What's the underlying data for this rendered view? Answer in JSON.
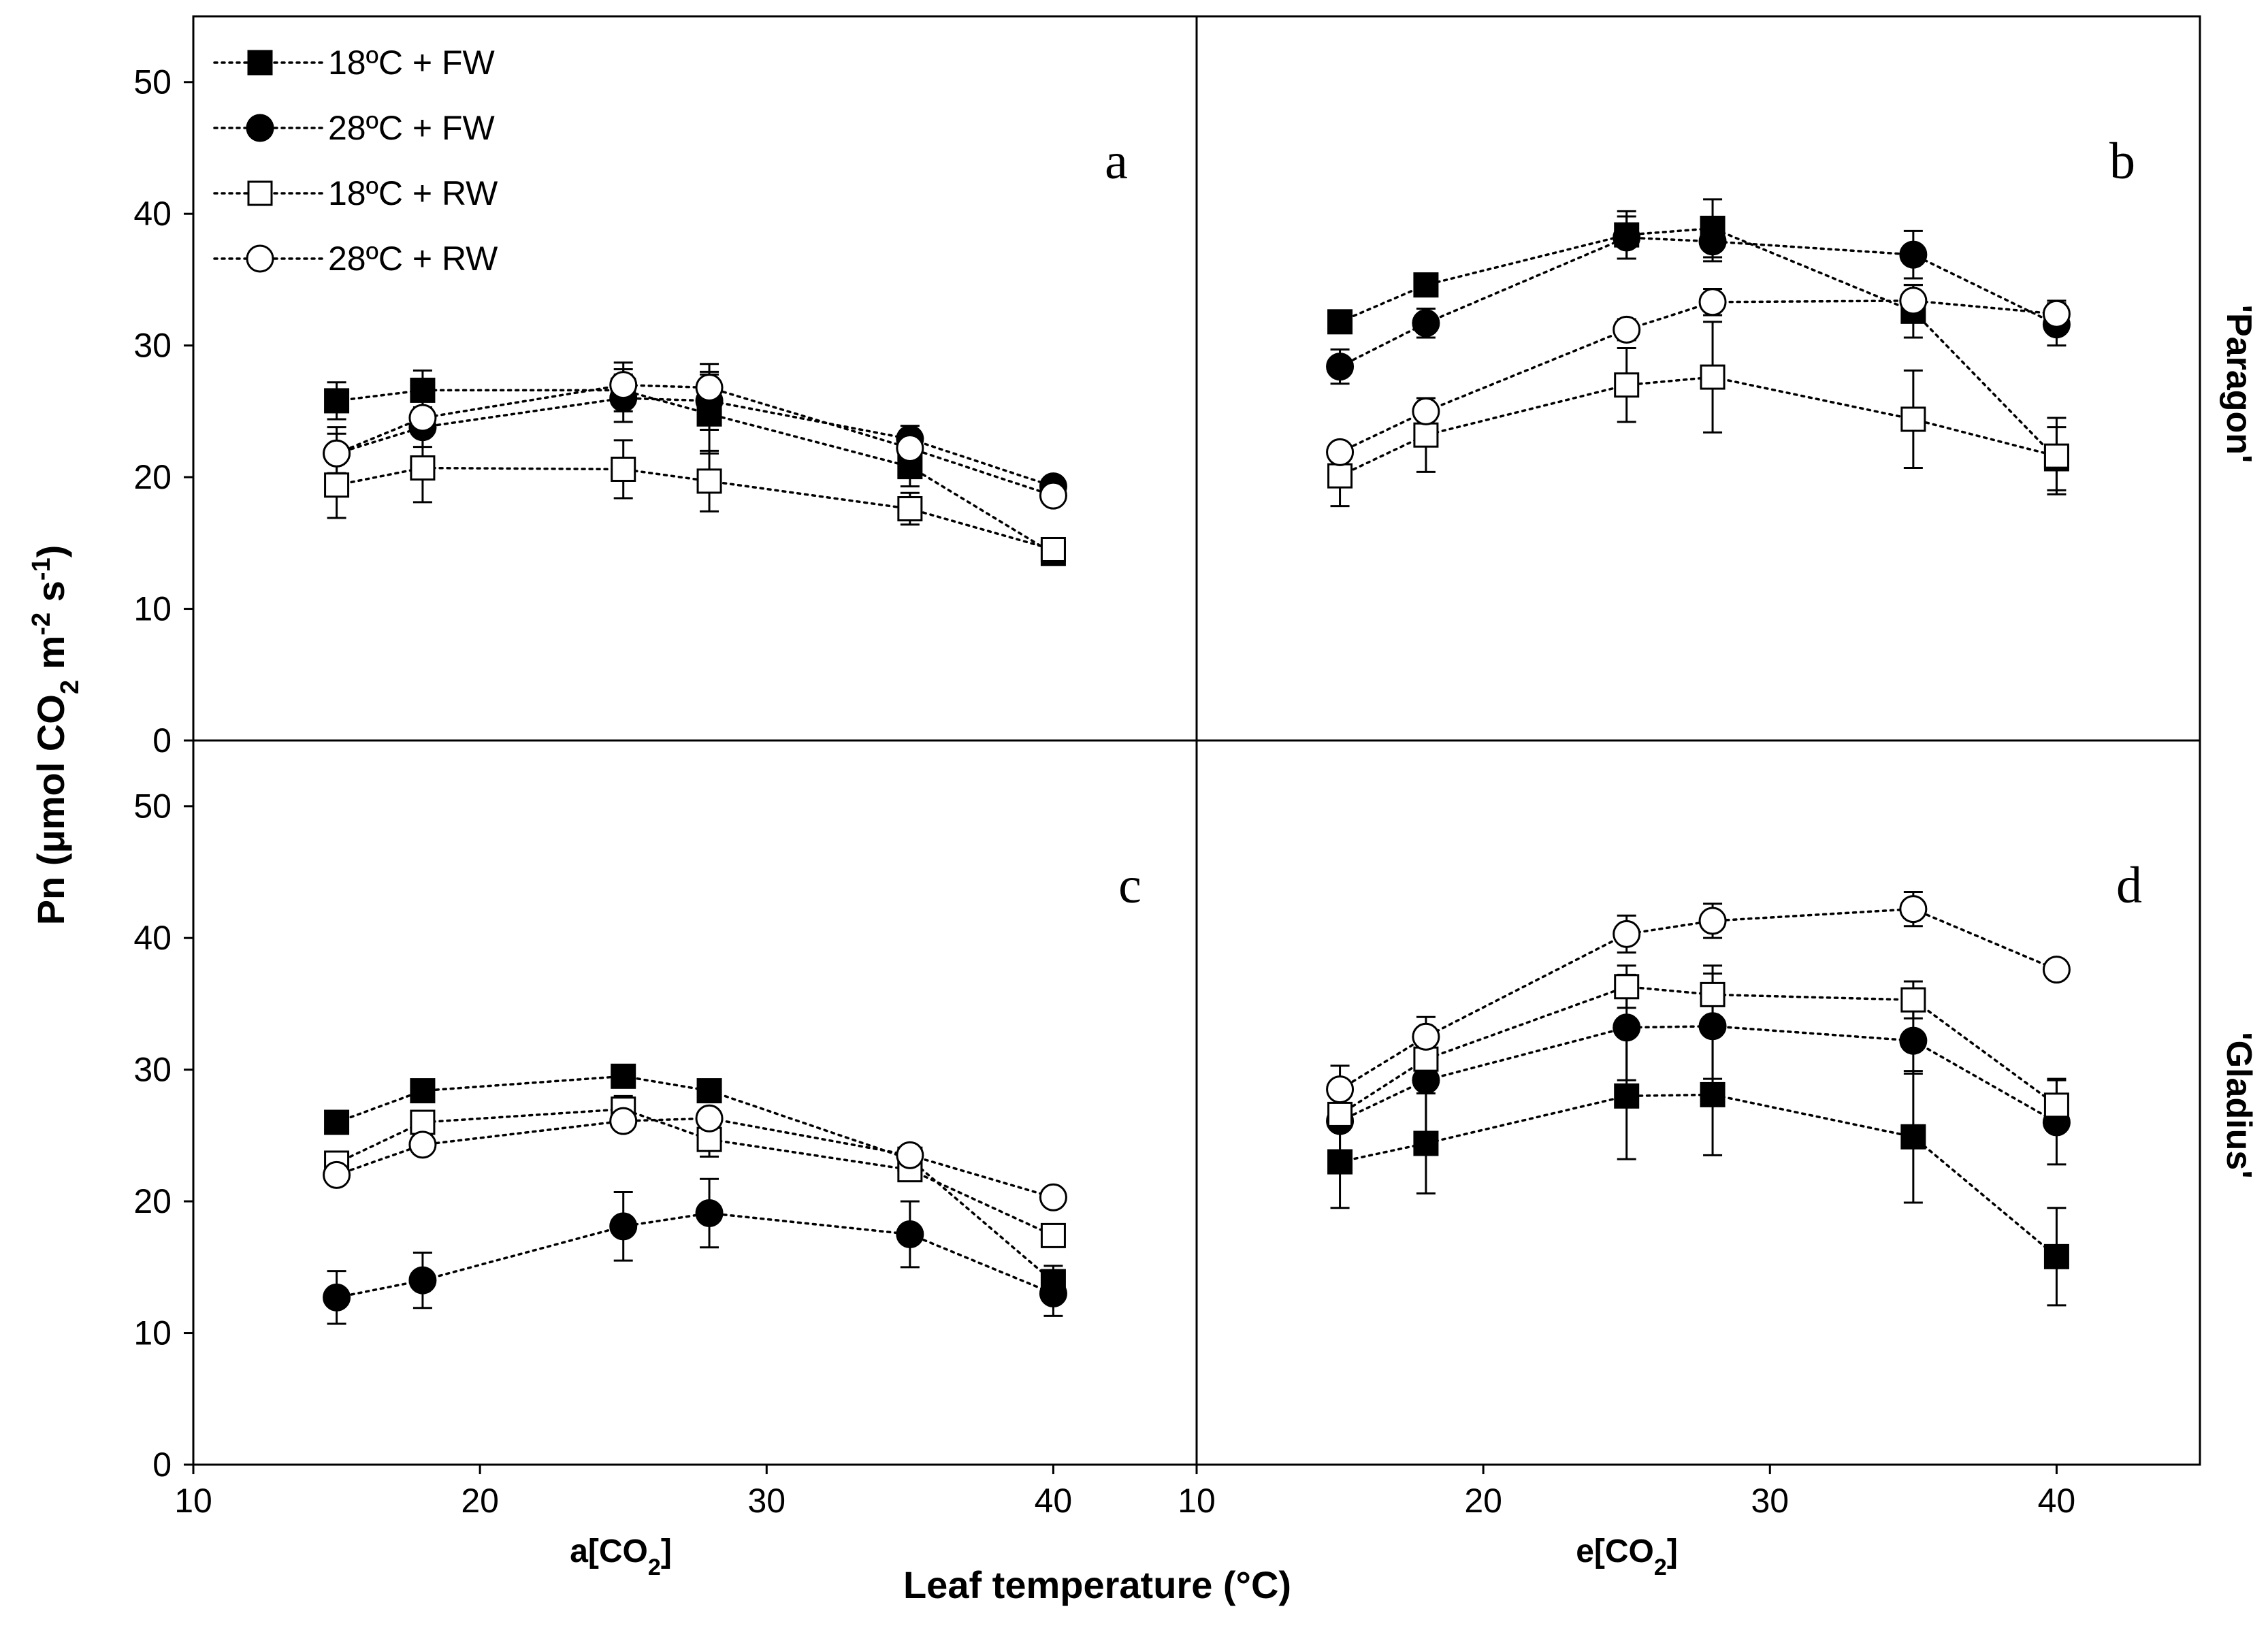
{
  "chart_data": {
    "type": "scatter",
    "ylabel_main": "Pn (μmol CO",
    "ylabel_sub2": "2",
    "ylabel_mid": " m",
    "ylabel_sup1": "-2",
    "ylabel_s": " s",
    "ylabel_sup2": "-1",
    "ylabel_close": ")",
    "xlabel": "Leaf temperature (°C)",
    "column_labels": [
      {
        "text": "a[CO",
        "sub": "2",
        "close": "]"
      },
      {
        "text": "e[CO",
        "sub": "2",
        "close": "]"
      }
    ],
    "row_labels": [
      "'Paragon'",
      "'Gladius'"
    ],
    "xlim": [
      10,
      45
    ],
    "xticks": [
      "10",
      "20",
      "30",
      "40"
    ],
    "ylim": [
      0,
      55
    ],
    "yticks": [
      "0",
      "10",
      "20",
      "30",
      "40",
      "50"
    ],
    "legend": {
      "placement": "top-left",
      "entries": [
        {
          "label": "18ºC + FW",
          "marker": "filled-square"
        },
        {
          "label": "28ºC + FW",
          "marker": "filled-circle"
        },
        {
          "label": "18ºC + RW",
          "marker": "open-square"
        },
        {
          "label": "28ºC + RW",
          "marker": "open-circle"
        }
      ]
    },
    "panels": [
      {
        "id": "a",
        "label": "a",
        "series": [
          {
            "name": "18ºC + FW",
            "x": [
              15,
              18,
              25,
              28,
              35,
              40
            ],
            "y": [
              25.8,
              26.6,
              26.6,
              24.8,
              20.8,
              14.2
            ],
            "err": [
              1.4,
              1.5,
              1.6,
              3.0,
              1.5,
              0.8
            ]
          },
          {
            "name": "28ºC + FW",
            "x": [
              15,
              18,
              25,
              28,
              35,
              40
            ],
            "y": [
              21.8,
              23.8,
              26.0,
              25.8,
              22.9,
              19.3
            ],
            "err": [
              2.0,
              1.5,
              1.8,
              2.2,
              1.0,
              0.6
            ]
          },
          {
            "name": "18ºC + RW",
            "x": [
              15,
              18,
              25,
              28,
              35,
              40
            ],
            "y": [
              19.4,
              20.7,
              20.6,
              19.7,
              17.6,
              14.5
            ],
            "err": [
              2.5,
              2.6,
              2.2,
              2.3,
              1.2,
              0.5
            ]
          },
          {
            "name": "28ºC + RW",
            "x": [
              15,
              18,
              25,
              28,
              35,
              40
            ],
            "y": [
              21.8,
              24.5,
              27.0,
              26.8,
              22.2,
              18.6
            ],
            "err": [
              1.5,
              1.3,
              1.7,
              1.8,
              1.0,
              0.5
            ]
          }
        ]
      },
      {
        "id": "b",
        "label": "b",
        "series": [
          {
            "name": "18ºC + FW",
            "x": [
              15,
              18,
              25,
              28,
              35,
              40
            ],
            "y": [
              31.8,
              34.6,
              38.4,
              38.9,
              32.6,
              21.4
            ],
            "err": [
              0.7,
              0.6,
              1.8,
              2.2,
              2.0,
              2.4
            ]
          },
          {
            "name": "28ºC + FW",
            "x": [
              15,
              18,
              25,
              28,
              35,
              40
            ],
            "y": [
              28.4,
              31.7,
              38.2,
              37.9,
              36.9,
              31.6
            ],
            "err": [
              1.3,
              1.1,
              1.6,
              1.5,
              1.8,
              1.6
            ]
          },
          {
            "name": "18ºC + RW",
            "x": [
              15,
              18,
              25,
              28,
              35,
              40
            ],
            "y": [
              20.1,
              23.2,
              27.0,
              27.6,
              24.4,
              21.6
            ],
            "err": [
              2.3,
              2.8,
              2.8,
              4.2,
              3.7,
              2.9
            ]
          },
          {
            "name": "28ºC + RW",
            "x": [
              15,
              18,
              25,
              28,
              35,
              40
            ],
            "y": [
              21.9,
              25.0,
              31.2,
              33.3,
              33.4,
              32.4
            ],
            "err": [
              0.5,
              0.7,
              0.8,
              1.0,
              1.2,
              1.0
            ]
          }
        ]
      },
      {
        "id": "c",
        "label": "c",
        "series": [
          {
            "name": "18ºC + FW",
            "x": [
              15,
              18,
              25,
              28,
              35,
              40
            ],
            "y": [
              26.0,
              28.4,
              29.5,
              28.4,
              23.2,
              13.9
            ],
            "err": [
              0.5,
              0.5,
              0.6,
              0.6,
              0.7,
              1.2
            ]
          },
          {
            "name": "28ºC + FW",
            "x": [
              15,
              18,
              25,
              28,
              35,
              40
            ],
            "y": [
              12.7,
              14.0,
              18.1,
              19.1,
              17.5,
              13.0
            ],
            "err": [
              2.0,
              2.1,
              2.6,
              2.6,
              2.5,
              1.7
            ]
          },
          {
            "name": "18ºC + RW",
            "x": [
              15,
              18,
              25,
              28,
              35,
              40
            ],
            "y": [
              22.9,
              26.0,
              27.0,
              24.7,
              22.4,
              17.4
            ],
            "err": [
              0.6,
              0.6,
              1.0,
              1.3,
              0.8,
              0.5
            ]
          },
          {
            "name": "28ºC + RW",
            "x": [
              15,
              18,
              25,
              28,
              35,
              40
            ],
            "y": [
              22.0,
              24.3,
              26.1,
              26.3,
              23.5,
              20.3
            ],
            "err": [
              0.6,
              0.6,
              0.7,
              0.7,
              0.6,
              0.5
            ]
          }
        ]
      },
      {
        "id": "d",
        "label": "d",
        "series": [
          {
            "name": "18ºC + FW",
            "x": [
              15,
              18,
              25,
              28,
              35,
              40
            ],
            "y": [
              23.0,
              24.4,
              28.0,
              28.1,
              24.9,
              15.8
            ],
            "err": [
              3.5,
              3.8,
              4.8,
              4.6,
              5.0,
              3.7
            ]
          },
          {
            "name": "28ºC + FW",
            "x": [
              15,
              18,
              25,
              28,
              35,
              40
            ],
            "y": [
              26.1,
              29.2,
              33.2,
              33.3,
              32.2,
              26.0
            ],
            "err": [
              2.5,
              4.0,
              4.0,
              4.0,
              2.5,
              3.2
            ]
          },
          {
            "name": "18ºC + RW",
            "x": [
              15,
              18,
              25,
              28,
              35,
              40
            ],
            "y": [
              26.6,
              30.8,
              36.3,
              35.7,
              35.3,
              27.3
            ],
            "err": [
              1.2,
              1.3,
              1.6,
              2.2,
              1.4,
              2.0
            ]
          },
          {
            "name": "28ºC + RW",
            "x": [
              15,
              18,
              25,
              28,
              35,
              40
            ],
            "y": [
              28.5,
              32.5,
              40.3,
              41.3,
              42.2,
              37.6
            ],
            "err": [
              1.8,
              1.5,
              1.4,
              1.3,
              1.3,
              0.5
            ]
          }
        ]
      }
    ]
  }
}
